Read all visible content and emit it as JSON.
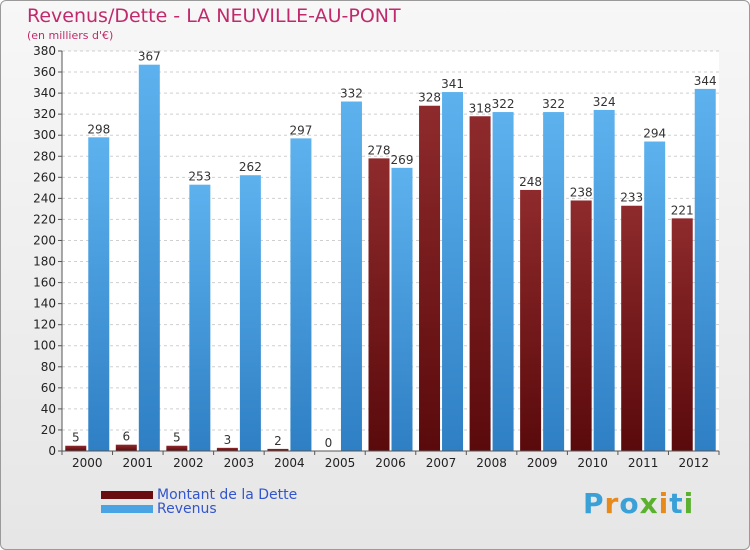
{
  "title": "Revenus/Dette - LA NEUVILLE-AU-PONT",
  "subtitle": "(en milliers d'€)",
  "logo": "Proxiti",
  "colors": {
    "dette": "#7a1a1c",
    "revenus": "#4aa3e3",
    "title": "#c02a6c",
    "legend_text": "#3355cc"
  },
  "chart_data": {
    "type": "bar",
    "title": "Revenus/Dette - LA NEUVILLE-AU-PONT",
    "ylabel": "(en milliers d'€)",
    "categories": [
      "2000",
      "2001",
      "2002",
      "2003",
      "2004",
      "2005",
      "2006",
      "2007",
      "2008",
      "2009",
      "2010",
      "2011",
      "2012"
    ],
    "series": [
      {
        "name": "Montant de la Dette",
        "values": [
          5,
          6,
          5,
          3,
          2,
          0,
          278,
          328,
          318,
          248,
          238,
          233,
          221
        ]
      },
      {
        "name": "Revenus",
        "values": [
          298,
          367,
          253,
          262,
          297,
          332,
          269,
          341,
          322,
          322,
          324,
          294,
          344
        ]
      }
    ],
    "ylim": [
      0,
      380
    ],
    "ytick_step": 20,
    "grid": true,
    "legend": "bottom-left"
  }
}
